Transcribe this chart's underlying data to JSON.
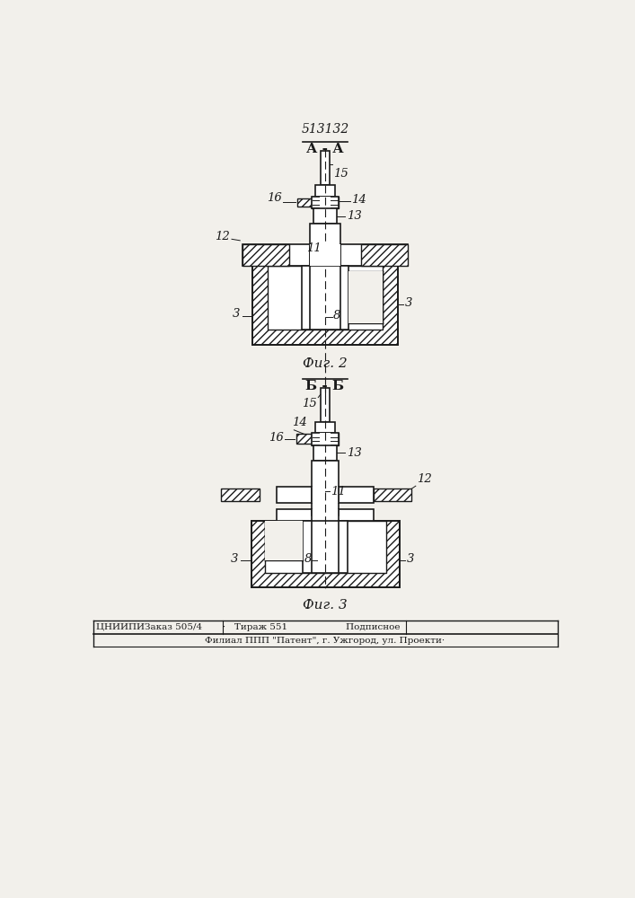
{
  "title": "513132",
  "fig2_label": "А - А",
  "fig3_label": "Б - Б",
  "fig2_caption": "Фиг. 2",
  "fig3_caption": "Фиг. 3",
  "footer_line1": "ЦНИИПИЗаказ 505/4       ·   Тираж 551                    Подписное",
  "footer_line2": "Филиал ППП \"Патент\", г. Ужгород, ул. Проекти·",
  "bg_color": "#f2f0eb",
  "line_color": "#1a1a1a",
  "hatch_color": "#1a1a1a",
  "text_color": "#1a1a1a"
}
